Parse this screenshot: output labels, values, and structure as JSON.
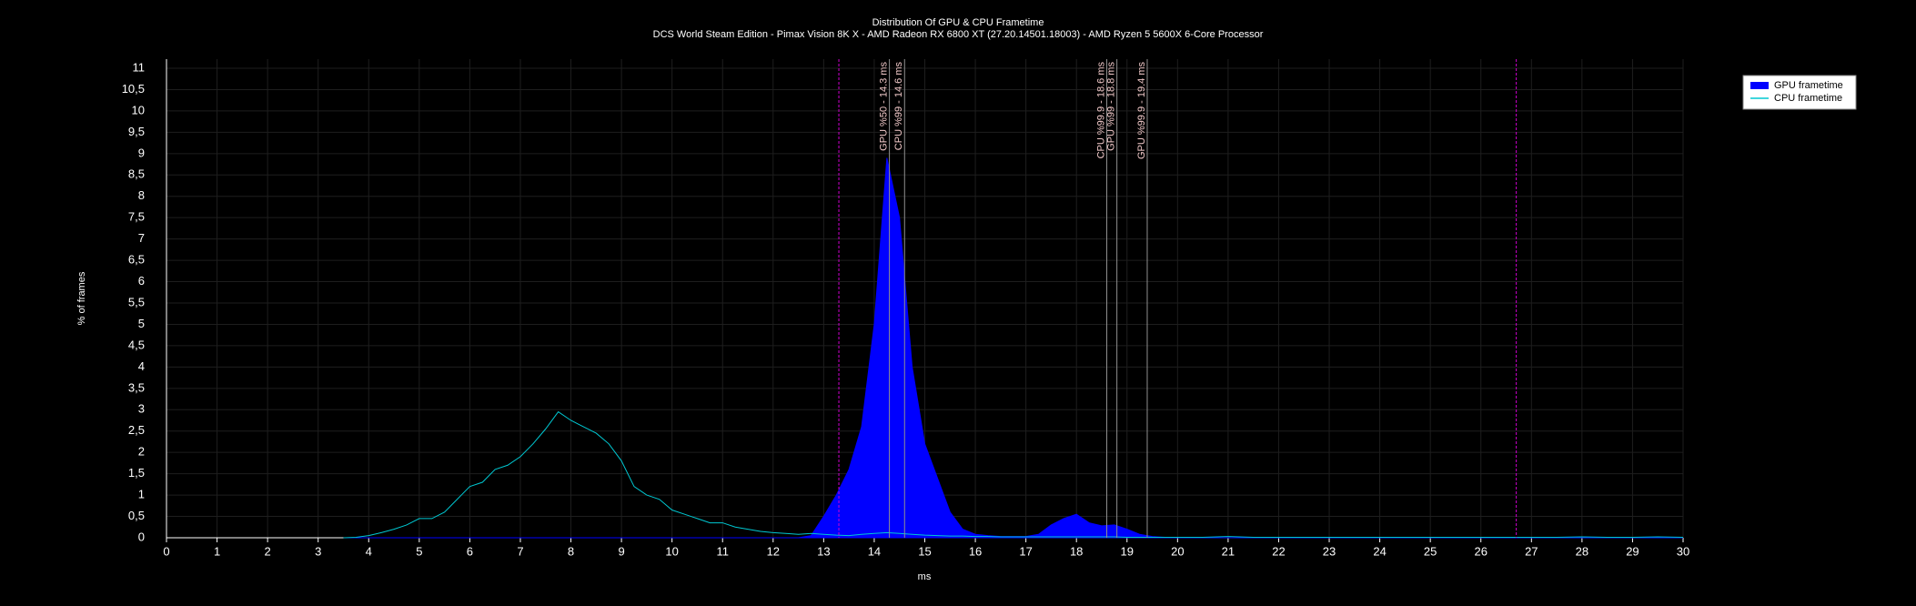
{
  "chart_data": {
    "type": "area_line",
    "title": "Distribution Of GPU & CPU Frametime",
    "subtitle": "DCS World Steam Edition - Pimax Vision 8K X - AMD Radeon RX 6800 XT (27.20.14501.18003) - AMD Ryzen 5 5600X 6-Core Processor",
    "xlabel": "ms",
    "ylabel": "% of frames",
    "xlim": [
      0,
      30
    ],
    "ylim": [
      0,
      11
    ],
    "xticks": [
      0,
      1,
      2,
      3,
      4,
      5,
      6,
      7,
      8,
      9,
      10,
      11,
      12,
      13,
      14,
      15,
      16,
      17,
      18,
      19,
      20,
      21,
      22,
      23,
      24,
      25,
      26,
      27,
      28,
      29,
      30
    ],
    "yticks": [
      0,
      {
        "value": 0.5,
        "label": "0,5"
      },
      1,
      {
        "value": 1.5,
        "label": "1,5"
      },
      2,
      {
        "value": 2.5,
        "label": "2,5"
      },
      3,
      {
        "value": 3.5,
        "label": "3,5"
      },
      4,
      {
        "value": 4.5,
        "label": "4,5"
      },
      5,
      {
        "value": 5.5,
        "label": "5,5"
      },
      6,
      {
        "value": 6.5,
        "label": "6,5"
      },
      7,
      {
        "value": 7.5,
        "label": "7,5"
      },
      8,
      {
        "value": 8.5,
        "label": "8,5"
      },
      9,
      {
        "value": 9.5,
        "label": "9,5"
      },
      10,
      {
        "value": 10.5,
        "label": "10,5"
      },
      11
    ],
    "grid": true,
    "legend": "top-right",
    "x": [
      3.5,
      3.75,
      4,
      4.25,
      4.5,
      4.75,
      5,
      5.25,
      5.5,
      5.75,
      6,
      6.25,
      6.5,
      6.75,
      7,
      7.25,
      7.5,
      7.75,
      8,
      8.25,
      8.5,
      8.75,
      9,
      9.25,
      9.5,
      9.75,
      10,
      10.25,
      10.5,
      10.75,
      11,
      11.25,
      11.5,
      11.75,
      12,
      12.25,
      12.5,
      12.75,
      13,
      13.25,
      13.5,
      13.75,
      14,
      14.25,
      14.5,
      14.75,
      15,
      15.25,
      15.5,
      15.75,
      16,
      16.25,
      16.5,
      16.75,
      17,
      17.25,
      17.5,
      17.75,
      18,
      18.25,
      18.5,
      18.75,
      19,
      19.25,
      19.5,
      19.75,
      20,
      20.5,
      21,
      21.5,
      22,
      22.5,
      23,
      23.5,
      24,
      24.5,
      25,
      25.5,
      26,
      26.5,
      27,
      27.5,
      28,
      28.5,
      29,
      29.5,
      30
    ],
    "series": [
      {
        "name": "GPU frametime",
        "color": "#0000ff",
        "kind": "area",
        "values": [
          0,
          0,
          0,
          0,
          0,
          0,
          0,
          0,
          0,
          0,
          0,
          0,
          0,
          0,
          0,
          0,
          0,
          0,
          0,
          0,
          0,
          0,
          0,
          0,
          0,
          0,
          0,
          0,
          0,
          0,
          0,
          0,
          0,
          0,
          0,
          0,
          0,
          0.05,
          0.5,
          1.0,
          1.6,
          2.6,
          5.0,
          8.9,
          7.5,
          4.0,
          2.2,
          1.4,
          0.6,
          0.2,
          0.08,
          0.05,
          0.03,
          0.03,
          0.03,
          0.08,
          0.3,
          0.45,
          0.55,
          0.35,
          0.28,
          0.3,
          0.2,
          0.08,
          0.03,
          0.01,
          0,
          0,
          0,
          0,
          0,
          0,
          0,
          0,
          0,
          0,
          0,
          0,
          0,
          0,
          0,
          0,
          0,
          0,
          0,
          0,
          0
        ]
      },
      {
        "name": "CPU frametime",
        "color": "#00c8d2",
        "kind": "line",
        "values": [
          0,
          0.01,
          0.05,
          0.12,
          0.2,
          0.3,
          0.45,
          0.45,
          0.6,
          0.9,
          1.2,
          1.3,
          1.6,
          1.7,
          1.9,
          2.2,
          2.55,
          2.95,
          2.75,
          2.6,
          2.45,
          2.2,
          1.8,
          1.2,
          1.0,
          0.9,
          0.65,
          0.55,
          0.45,
          0.35,
          0.35,
          0.25,
          0.2,
          0.15,
          0.12,
          0.1,
          0.08,
          0.1,
          0.08,
          0.06,
          0.05,
          0.08,
          0.1,
          0.12,
          0.1,
          0.08,
          0.06,
          0.05,
          0.04,
          0.04,
          0.03,
          0.03,
          0.02,
          0.02,
          0.02,
          0.02,
          0.02,
          0.02,
          0.02,
          0.02,
          0.02,
          0.02,
          0.01,
          0.01,
          0.01,
          0.01,
          0.01,
          0.01,
          0.03,
          0.01,
          0.01,
          0.01,
          0.01,
          0.01,
          0.01,
          0.01,
          0.01,
          0.01,
          0.01,
          0.01,
          0.01,
          0.01,
          0.02,
          0.01,
          0.01,
          0.02,
          0.01
        ]
      }
    ],
    "markers": {
      "color": "#d000d0",
      "x": [
        13.3,
        26.7
      ]
    },
    "annotations": {
      "line_color": "#909090",
      "text_color": "#f0c8c8",
      "items": [
        {
          "x": 14.3,
          "label": "GPU %50 - 14.3 ms"
        },
        {
          "x": 14.6,
          "label": "CPU %99 - 14.6 ms"
        },
        {
          "x": 18.6,
          "label": "CPU %99.9 - 18.6 ms"
        },
        {
          "x": 18.8,
          "label": "GPU %99 - 18.8 ms"
        },
        {
          "x": 19.4,
          "label": "GPU %99.9 - 19.4 ms"
        }
      ]
    }
  }
}
